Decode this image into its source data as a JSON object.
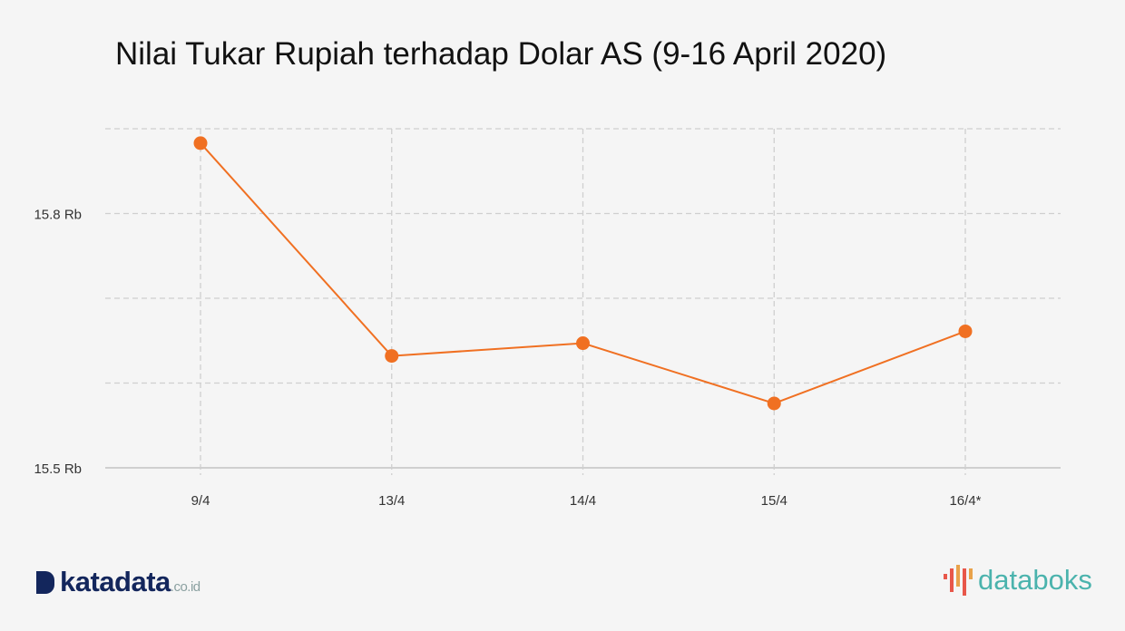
{
  "title": "Nilai Tukar Rupiah terhadap Dolar AS (9-16 April 2020)",
  "chart_data": {
    "type": "line",
    "title": "Nilai Tukar Rupiah terhadap Dolar AS (9-16 April 2020)",
    "categories": [
      "9/4",
      "13/4",
      "14/4",
      "15/4",
      "16/4*"
    ],
    "series": [
      {
        "values": [
          15.883,
          15.632,
          15.647,
          15.576,
          15.661
        ],
        "color": "#f07022"
      }
    ],
    "ylim": [
      15.5,
      15.9
    ],
    "yticks": [
      {
        "value": 15.5,
        "label": "15.5 Rb"
      },
      {
        "value": 15.8,
        "label": "15.8 Rb"
      }
    ],
    "ygrid": [
      15.5,
      15.6,
      15.7,
      15.8,
      15.9
    ],
    "grid": true,
    "xlabel": "",
    "ylabel": ""
  },
  "logos": {
    "left": "katadata",
    "left_suffix": ".co.id",
    "right": "databoks"
  }
}
